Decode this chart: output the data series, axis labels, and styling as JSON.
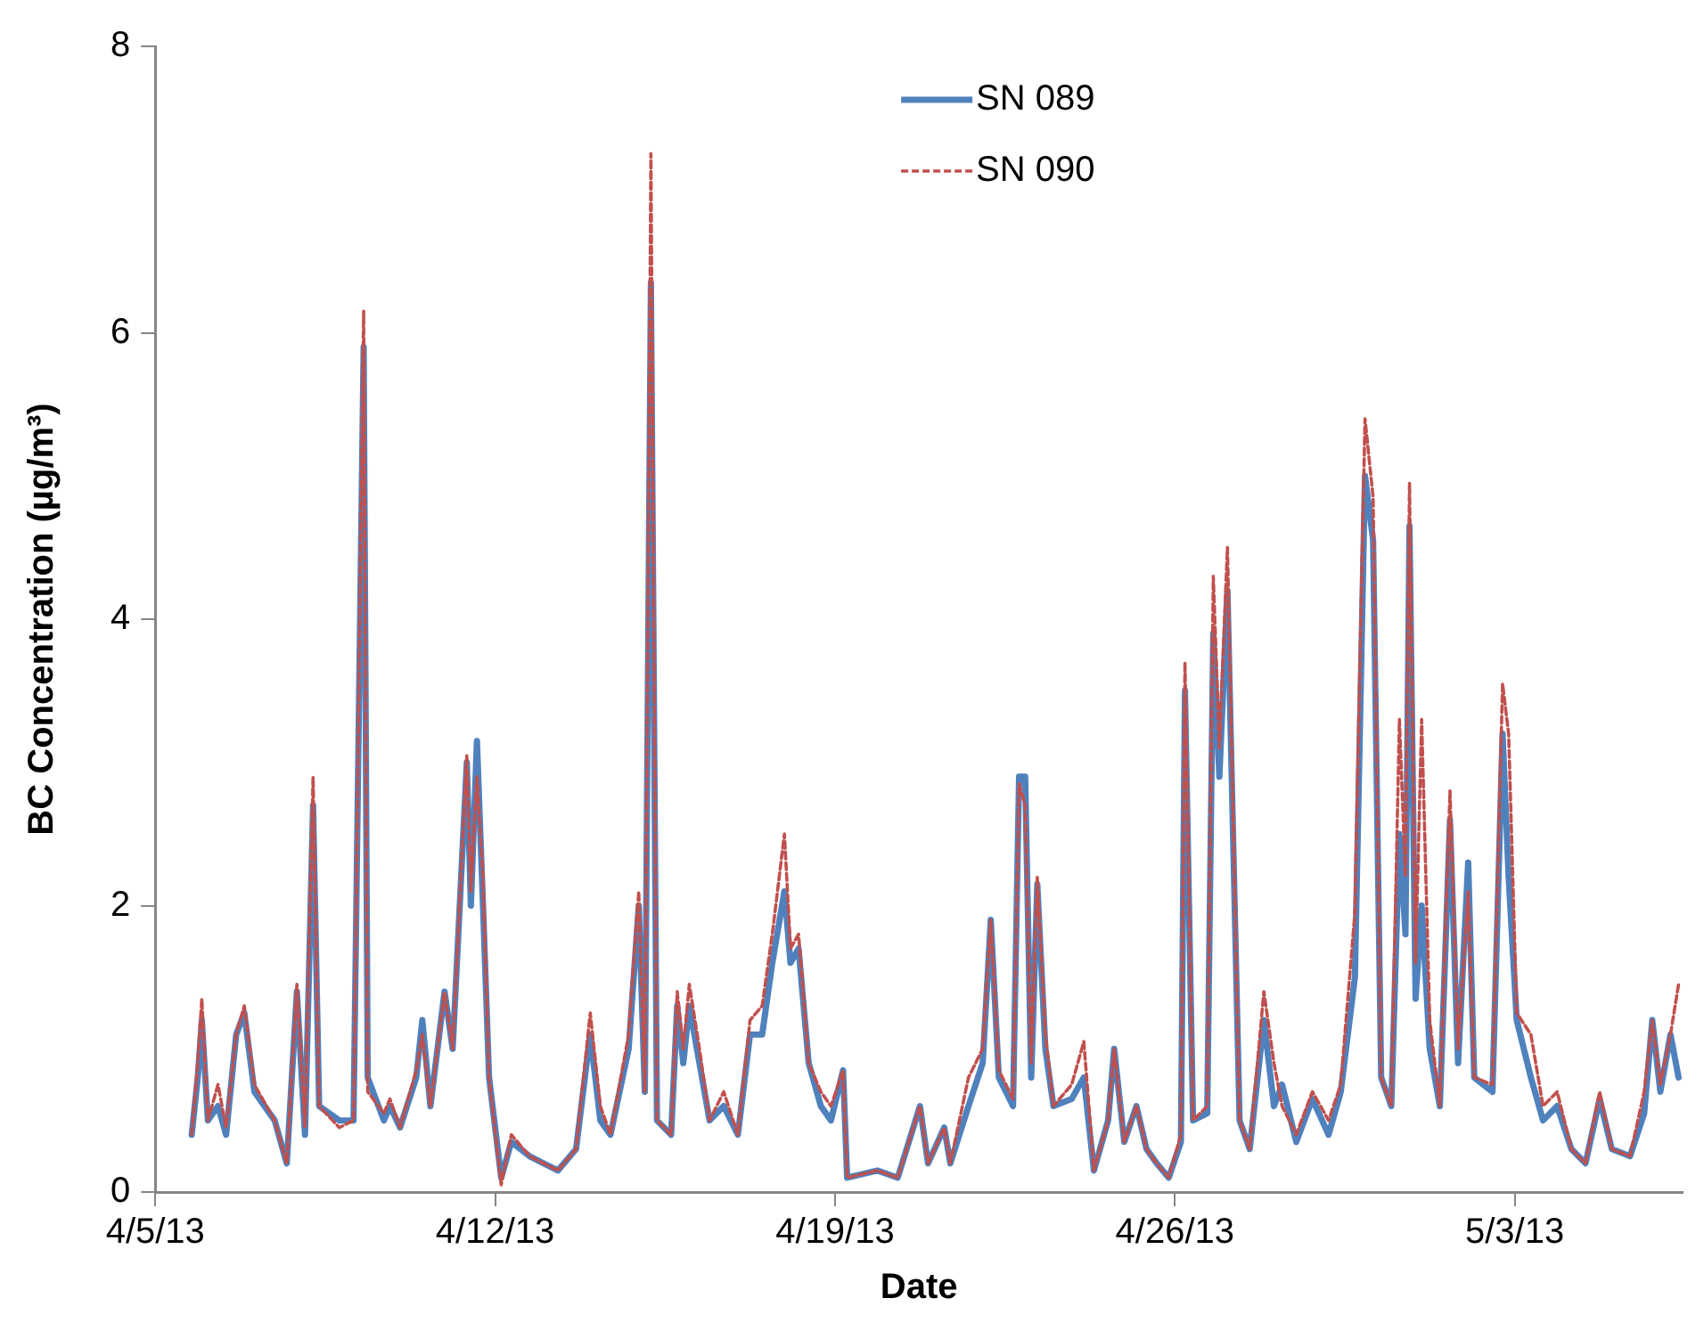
{
  "chart_data": {
    "type": "line",
    "xlabel": "Date",
    "ylabel": "BC Concentration (µg/m³)",
    "xlim": [
      "--04-05",
      "--05-06T11:00"
    ],
    "xticks": [
      {
        "value": "--04-05",
        "label": "4/5/13"
      },
      {
        "value": "--04-12",
        "label": "4/12/13"
      },
      {
        "value": "--04-19",
        "label": "4/19/13"
      },
      {
        "value": "--04-26",
        "label": "4/26/13"
      },
      {
        "value": "--05-03",
        "label": "5/3/13"
      }
    ],
    "ylim": [
      0,
      8
    ],
    "yticks": [
      0,
      2,
      4,
      6,
      8
    ],
    "grid": false,
    "legend": "top",
    "marker": "none",
    "x": [
      "--04-05T18:00",
      "--04-05T21:00",
      "--04-05T23:00",
      "--04-06T02:00",
      "--04-06T07:00",
      "--04-06T11:00",
      "--04-06T16:00",
      "--04-06T20:00",
      "--04-07T01:00",
      "--04-07T11:00",
      "--04-07T17:00",
      "--04-07T22:00",
      "--04-08T02:00",
      "--04-08T06:00",
      "--04-08T09:00",
      "--04-08T19:00",
      "--04-09T02:00",
      "--04-09T07:00",
      "--04-09T09:00",
      "--04-09T17:00",
      "--04-09T20:00",
      "--04-10T01:00",
      "--04-10T09:00",
      "--04-10T12:00",
      "--04-10T16:00",
      "--04-10T23:00",
      "--04-11T03:00",
      "--04-11T10:00",
      "--04-11T12:00",
      "--04-11T15:00",
      "--04-11T18:00",
      "--04-11T21:00",
      "--04-12T03:00",
      "--04-12T08:00",
      "--04-12T17:00",
      "--04-13T07:00",
      "--04-13T16:00",
      "--04-13T23:00",
      "--04-14T04:00",
      "--04-14T09:00",
      "--04-14T18:00",
      "--04-14T23:00",
      "--04-15T02:00",
      "--04-15T05:00",
      "--04-15T08:00",
      "--04-15T15:00",
      "--04-15T18:00",
      "--04-15T21:00",
      "--04-16T00:00",
      "--04-16T05:00",
      "--04-16T10:00",
      "--04-16T17:00",
      "--04-17T00:00",
      "--04-17T06:00",
      "--04-17T12:00",
      "--04-17T17:00",
      "--04-17T23:00",
      "--04-18T02:00",
      "--04-18T06:00",
      "--04-18T11:00",
      "--04-18T17:00",
      "--04-18T22:00",
      "--04-19T04:00",
      "--04-19T06:00",
      "--04-19T21:00",
      "--04-20T07:00",
      "--04-20T18:00",
      "--04-20T22:00",
      "--04-21T06:00",
      "--04-21T09:00",
      "--04-21T18:00",
      "--04-22T01:00",
      "--04-22T05:00",
      "--04-22T09:00",
      "--04-22T16:00",
      "--04-22T19:00",
      "--04-22T22:00",
      "--04-23T01:00",
      "--04-23T04:00",
      "--04-23T08:00",
      "--04-23T12:00",
      "--04-23T21:00",
      "--04-24T03:00",
      "--04-24T08:00",
      "--04-24T15:00",
      "--04-24T18:00",
      "--04-24T23:00",
      "--04-25T05:00",
      "--04-25T10:00",
      "--04-25T15:00",
      "--04-25T21:00",
      "--04-26T03:00",
      "--04-26T05:00",
      "--04-26T09:00",
      "--04-26T16:00",
      "--04-26T19:00",
      "--04-26T22:00",
      "--04-27T02:00",
      "--04-27T08:00",
      "--04-27T13:00",
      "--04-27T20:00",
      "--04-28T01:00",
      "--04-28T05:00",
      "--04-28T12:00",
      "--04-28T20:00",
      "--04-29T04:00",
      "--04-29T10:00",
      "--04-29T17:00",
      "--04-29T22:00",
      "--04-30T02:00",
      "--04-30T06:00",
      "--04-30T11:00",
      "--04-30T15:00",
      "--04-30T18:00",
      "--04-30T20:00",
      "--04-30T23:00",
      "--05-01T02:00",
      "--05-01T06:00",
      "--05-01T11:00",
      "--05-01T16:00",
      "--05-01T20:00",
      "--05-02T01:00",
      "--05-02T04:00",
      "--05-02T13:00",
      "--05-02T18:00",
      "--05-02T21:00",
      "--05-03T01:00",
      "--05-03T08:00",
      "--05-03T14:00",
      "--05-03T21:00",
      "--05-04T04:00",
      "--05-04T11:00",
      "--05-04T18:00",
      "--05-05T00:00",
      "--05-05T09:00",
      "--05-05T16:00",
      "--05-05T20:00",
      "--05-06T00:00",
      "--05-06T05:00",
      "--05-06T09:00"
    ],
    "series": [
      {
        "name": "SN 089",
        "color": "#4f81bd",
        "line_style": "solid",
        "values": [
          0.4,
          0.8,
          1.2,
          0.5,
          0.6,
          0.4,
          1.1,
          1.25,
          0.7,
          0.5,
          0.2,
          1.4,
          0.4,
          2.7,
          0.6,
          0.5,
          0.5,
          5.9,
          0.8,
          0.5,
          0.6,
          0.45,
          0.8,
          1.2,
          0.6,
          1.4,
          1.0,
          3.0,
          2.0,
          3.15,
          2.0,
          0.8,
          0.1,
          0.35,
          0.25,
          0.15,
          0.3,
          1.1,
          0.5,
          0.4,
          1.0,
          2.0,
          0.7,
          6.35,
          0.5,
          0.4,
          1.3,
          0.9,
          1.3,
          0.9,
          0.5,
          0.6,
          0.4,
          1.1,
          1.1,
          1.6,
          2.1,
          1.6,
          1.7,
          0.9,
          0.6,
          0.5,
          0.85,
          0.1,
          0.15,
          0.1,
          0.6,
          0.2,
          0.45,
          0.2,
          0.6,
          0.9,
          1.9,
          0.8,
          0.6,
          2.9,
          2.9,
          0.8,
          2.15,
          1.0,
          0.6,
          0.65,
          0.8,
          0.15,
          0.5,
          1.0,
          0.35,
          0.6,
          0.3,
          0.2,
          0.1,
          0.35,
          3.5,
          0.5,
          0.55,
          3.9,
          2.9,
          4.2,
          0.5,
          0.3,
          1.2,
          0.6,
          0.75,
          0.35,
          0.65,
          0.4,
          0.7,
          1.5,
          5.0,
          4.55,
          0.8,
          0.6,
          2.5,
          1.8,
          4.65,
          1.35,
          2.0,
          1.0,
          0.6,
          2.6,
          0.9,
          2.3,
          0.8,
          0.7,
          3.2,
          2.2,
          1.2,
          0.8,
          0.5,
          0.6,
          0.3,
          0.2,
          0.65,
          0.3,
          0.25,
          0.55,
          1.2,
          0.7,
          1.1,
          0.8
        ]
      },
      {
        "name": "SN 090",
        "color": "#c0504d",
        "line_style": "dashed",
        "values": [
          0.4,
          0.9,
          1.35,
          0.5,
          0.75,
          0.45,
          1.1,
          1.3,
          0.75,
          0.5,
          0.2,
          1.45,
          0.45,
          2.9,
          0.6,
          0.45,
          0.5,
          6.15,
          0.7,
          0.55,
          0.65,
          0.45,
          0.85,
          1.1,
          0.6,
          1.4,
          1.0,
          3.05,
          2.1,
          2.9,
          2.2,
          0.8,
          0.05,
          0.4,
          0.25,
          0.15,
          0.3,
          1.25,
          0.6,
          0.4,
          1.1,
          2.1,
          0.7,
          7.25,
          0.5,
          0.4,
          1.4,
          1.0,
          1.45,
          1.0,
          0.5,
          0.7,
          0.4,
          1.2,
          1.3,
          1.8,
          2.5,
          1.7,
          1.8,
          0.9,
          0.7,
          0.6,
          0.85,
          0.1,
          0.15,
          0.1,
          0.6,
          0.2,
          0.45,
          0.2,
          0.8,
          1.0,
          1.9,
          0.85,
          0.65,
          2.85,
          2.7,
          0.9,
          2.2,
          1.1,
          0.6,
          0.75,
          1.05,
          0.15,
          0.5,
          1.0,
          0.35,
          0.6,
          0.3,
          0.2,
          0.1,
          0.4,
          3.7,
          0.5,
          0.6,
          4.3,
          3.1,
          4.5,
          0.5,
          0.3,
          1.4,
          0.9,
          0.6,
          0.4,
          0.7,
          0.5,
          0.75,
          1.95,
          5.4,
          4.85,
          0.8,
          0.6,
          3.3,
          2.2,
          4.95,
          1.6,
          3.3,
          1.2,
          0.6,
          2.8,
          1.0,
          2.1,
          0.8,
          0.75,
          3.55,
          3.2,
          1.25,
          1.1,
          0.6,
          0.7,
          0.3,
          0.2,
          0.7,
          0.3,
          0.25,
          0.7,
          1.2,
          0.75,
          1.1,
          1.45
        ]
      }
    ]
  }
}
